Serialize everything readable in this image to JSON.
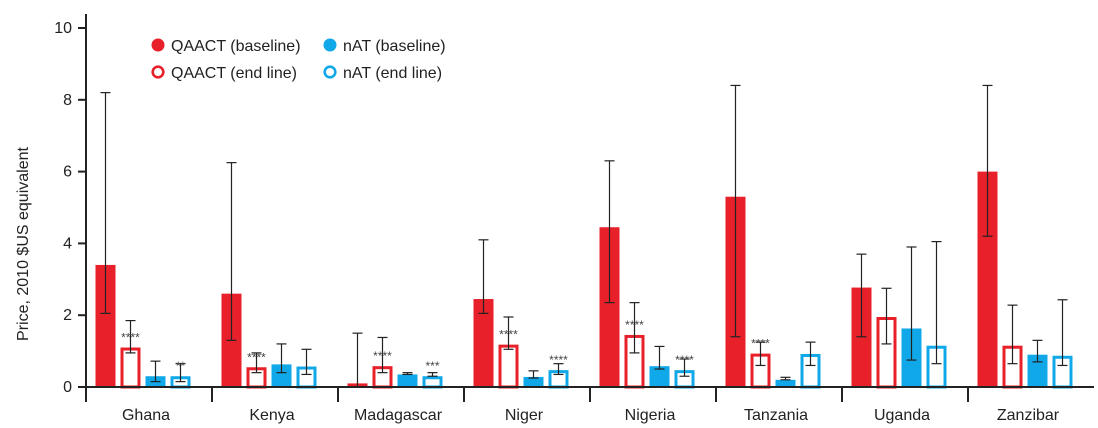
{
  "chart_data": {
    "type": "bar",
    "ylabel": "Price, 2010 $US equivalent",
    "ylim": [
      0,
      10
    ],
    "yticks": [
      0,
      2,
      4,
      6,
      8,
      10
    ],
    "categories": [
      "Ghana",
      "Kenya",
      "Madagascar",
      "Niger",
      "Nigeria",
      "Tanzania",
      "Uganda",
      "Zanzibar"
    ],
    "legend_position": "top-left",
    "series": [
      {
        "name": "QAACT (baseline)",
        "color": "#e8202a",
        "style": "filled",
        "values": [
          3.4,
          2.6,
          0.1,
          2.45,
          4.45,
          5.3,
          2.77,
          6.0
        ],
        "err_low": [
          2.05,
          1.3,
          0.0,
          2.05,
          2.35,
          1.4,
          1.4,
          4.2
        ],
        "err_high": [
          8.2,
          6.25,
          1.5,
          4.1,
          6.3,
          8.4,
          3.7,
          8.4
        ],
        "sig": [
          "",
          "",
          "",
          "",
          "",
          "",
          "",
          ""
        ]
      },
      {
        "name": "QAACT (end line)",
        "color": "#e8202a",
        "style": "outline",
        "values": [
          1.1,
          0.55,
          0.58,
          1.18,
          1.45,
          0.93,
          1.95,
          1.15
        ],
        "err_low": [
          0.95,
          0.4,
          0.4,
          1.05,
          0.95,
          0.6,
          1.2,
          0.65
        ],
        "err_high": [
          1.85,
          0.95,
          1.38,
          1.95,
          2.35,
          1.25,
          2.75,
          2.28
        ],
        "sig": [
          "****",
          "****",
          "****",
          "****",
          "****",
          "****",
          "",
          ""
        ]
      },
      {
        "name": "nAT (baseline)",
        "color": "#10a8e8",
        "style": "filled",
        "values": [
          0.3,
          0.63,
          0.35,
          0.28,
          0.58,
          0.2,
          1.63,
          0.9
        ],
        "err_low": [
          0.15,
          0.4,
          0.35,
          0.25,
          0.5,
          0.2,
          0.75,
          0.7
        ],
        "err_high": [
          0.72,
          1.2,
          0.4,
          0.45,
          1.13,
          0.27,
          3.9,
          1.3
        ],
        "sig": [
          "",
          "",
          "",
          "",
          "",
          "",
          "",
          ""
        ]
      },
      {
        "name": "nAT (end line)",
        "color": "#10a8e8",
        "style": "outline",
        "values": [
          0.3,
          0.57,
          0.3,
          0.47,
          0.47,
          0.92,
          1.15,
          0.87
        ],
        "err_low": [
          0.15,
          0.35,
          0.3,
          0.35,
          0.3,
          0.6,
          0.65,
          0.6
        ],
        "err_high": [
          0.65,
          1.05,
          0.4,
          0.65,
          0.78,
          1.25,
          4.05,
          2.43
        ],
        "sig": [
          "**",
          "",
          "***",
          "****",
          "****",
          "",
          "",
          ""
        ]
      }
    ]
  }
}
